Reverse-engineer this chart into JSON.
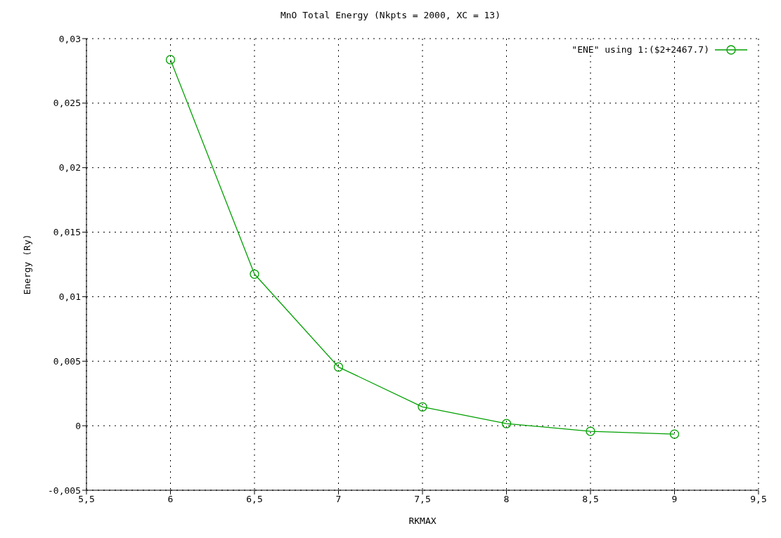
{
  "chart_data": {
    "type": "line",
    "title": "MnO Total Energy (Nkpts = 2000, XC = 13)",
    "xlabel": "RKMAX",
    "ylabel": "Energy (Ry)",
    "x": [
      6,
      6.5,
      7,
      7.5,
      8,
      8.5,
      9
    ],
    "series": [
      {
        "name": "\"ENE\" using 1:($2+2467.7)",
        "color": "#00a000",
        "values": [
          0.02837,
          0.01175,
          0.00455,
          0.00146,
          0.00016,
          -0.00043,
          -0.00065
        ]
      }
    ],
    "xlim": [
      5.5,
      9.5
    ],
    "xticks": [
      {
        "value": 5.5,
        "label": "5,5"
      },
      6,
      {
        "value": 6.5,
        "label": "6,5"
      },
      7,
      {
        "value": 7.5,
        "label": "7,5"
      },
      8,
      {
        "value": 8.5,
        "label": "8,5"
      },
      9,
      {
        "value": 9.5,
        "label": "9,5"
      }
    ],
    "ylim": [
      -0.005,
      0.03
    ],
    "yticks": [
      {
        "value": -0.005,
        "label": "-0,005"
      },
      0,
      {
        "value": 0.005,
        "label": "0,005"
      },
      {
        "value": 0.01,
        "label": "0,01"
      },
      {
        "value": 0.015,
        "label": "0,015"
      },
      {
        "value": 0.02,
        "label": "0,02"
      },
      {
        "value": 0.025,
        "label": "0,025"
      },
      {
        "value": 0.03,
        "label": "0,03"
      }
    ],
    "grid": true,
    "legend": "top right",
    "marker": "circle",
    "line_style": "solid"
  }
}
